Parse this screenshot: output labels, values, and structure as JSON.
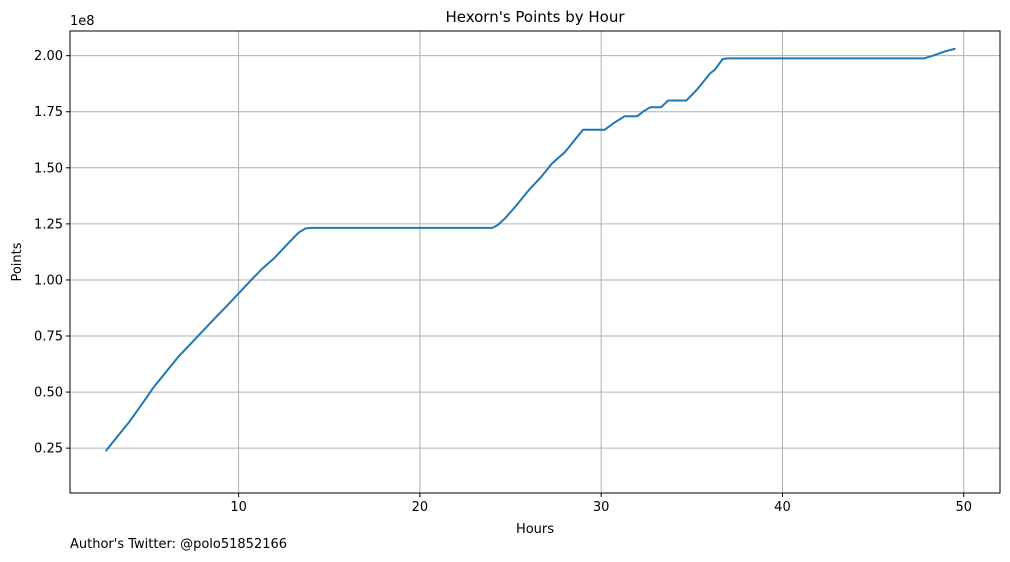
{
  "chart_data": {
    "type": "line",
    "title": "Hexorn's Points by Hour",
    "xlabel": "Hours",
    "ylabel": "Points",
    "y_offset_label": "1e8",
    "xlim": [
      0.7,
      52.0
    ],
    "ylim": [
      5000000,
      211000000
    ],
    "x_ticks": [
      10,
      20,
      30,
      40,
      50
    ],
    "x_tick_labels": [
      "10",
      "20",
      "30",
      "40",
      "50"
    ],
    "y_ticks": [
      25000000,
      50000000,
      75000000,
      100000000,
      125000000,
      150000000,
      175000000,
      200000000
    ],
    "y_tick_labels": [
      "0.25",
      "0.50",
      "0.75",
      "1.00",
      "1.25",
      "1.50",
      "1.75",
      "2.00"
    ],
    "grid": true,
    "line_color": "#1f77b4",
    "grid_color": "#b0b0b0",
    "series": [
      {
        "x": [
          2.7,
          3.3,
          4.0,
          4.7,
          5.3,
          6.0,
          6.7,
          7.3,
          8.0,
          8.7,
          9.3,
          10.0,
          10.7,
          11.3,
          12.0,
          12.7,
          13.3,
          13.7,
          14.0,
          15.0,
          18.0,
          20.0,
          22.0,
          24.0,
          24.3,
          24.7,
          25.3,
          26.0,
          26.7,
          27.3,
          28.0,
          28.7,
          29.0,
          30.2,
          30.7,
          31.3,
          32.0,
          32.3,
          32.7,
          33.3,
          33.7,
          34.0,
          34.7,
          35.3,
          36.0,
          36.3,
          36.7,
          37.0,
          40.0,
          45.0,
          47.8,
          48.3,
          49.0,
          49.5
        ],
        "y": [
          24000000,
          30000000,
          37000000,
          45000000,
          52000000,
          59000000,
          66000000,
          71000000,
          77000000,
          83000000,
          88000000,
          94000000,
          100000000,
          105000000,
          110000000,
          116000000,
          121000000,
          123000000,
          123200000,
          123200000,
          123200000,
          123200000,
          123200000,
          123200000,
          124500000,
          127500000,
          133000000,
          140000000,
          146000000,
          152000000,
          157000000,
          164000000,
          167000000,
          167000000,
          170000000,
          173000000,
          173000000,
          175000000,
          177000000,
          177000000,
          180000000,
          180000000,
          180000000,
          185000000,
          192000000,
          194000000,
          198500000,
          198800000,
          198800000,
          198800000,
          198800000,
          200000000,
          202000000,
          203000000
        ]
      }
    ]
  },
  "footer": {
    "text": "Author's Twitter: @polo51852166"
  }
}
